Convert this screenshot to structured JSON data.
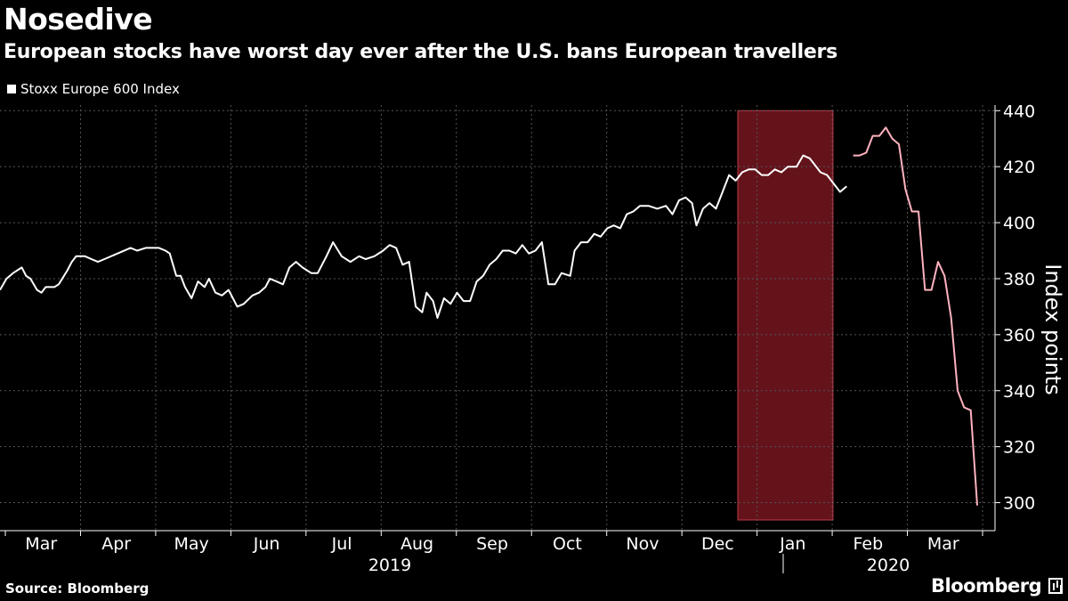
{
  "header": {
    "title": "Nosedive",
    "subtitle": "European stocks have worst day ever after the U.S. bans European travellers"
  },
  "legend": {
    "label": "Stoxx Europe 600 Index"
  },
  "footer": {
    "source": "Source: Bloomberg",
    "brand": "Bloomberg"
  },
  "colors": {
    "background": "#000000",
    "line": "#ffffff",
    "highlight": "#8b1a26",
    "highlight_line": "#ffb3bf"
  },
  "chart_data": {
    "type": "line",
    "ylabel": "Index points",
    "ylim": [
      290,
      442
    ],
    "y_ticks": [
      300,
      320,
      340,
      360,
      380,
      400,
      420,
      440
    ],
    "grid": true,
    "x_month_labels": [
      "Mar",
      "Apr",
      "May",
      "Jun",
      "Jul",
      "Aug",
      "Sep",
      "Oct",
      "Nov",
      "Dec",
      "Jan",
      "Feb",
      "Mar"
    ],
    "x_year_labels": [
      "2019",
      "2020"
    ],
    "highlight_range": [
      "2020-02-03",
      "2020-03-12"
    ],
    "series": [
      {
        "name": "Stoxx Europe 600 Index",
        "points": [
          [
            "2019-03-01",
            376
          ],
          [
            "2019-03-04",
            380
          ],
          [
            "2019-03-07",
            382
          ],
          [
            "2019-03-11",
            384
          ],
          [
            "2019-03-13",
            381
          ],
          [
            "2019-03-15",
            380
          ],
          [
            "2019-03-18",
            376
          ],
          [
            "2019-03-20",
            375
          ],
          [
            "2019-03-22",
            377
          ],
          [
            "2019-03-26",
            377
          ],
          [
            "2019-03-28",
            378
          ],
          [
            "2019-04-01",
            383
          ],
          [
            "2019-04-03",
            386
          ],
          [
            "2019-04-05",
            388
          ],
          [
            "2019-04-09",
            388
          ],
          [
            "2019-04-12",
            387
          ],
          [
            "2019-04-15",
            386
          ],
          [
            "2019-04-18",
            387
          ],
          [
            "2019-04-24",
            389
          ],
          [
            "2019-04-30",
            391
          ],
          [
            "2019-05-03",
            390
          ],
          [
            "2019-05-07",
            391
          ],
          [
            "2019-05-13",
            391
          ],
          [
            "2019-05-16",
            390
          ],
          [
            "2019-05-18",
            389
          ],
          [
            "2019-05-21",
            381
          ],
          [
            "2019-05-23",
            381
          ],
          [
            "2019-05-25",
            377
          ],
          [
            "2019-05-28",
            373
          ],
          [
            "2019-05-31",
            379
          ],
          [
            "2019-06-03",
            377
          ],
          [
            "2019-06-05",
            380
          ],
          [
            "2019-06-08",
            375
          ],
          [
            "2019-06-11",
            374
          ],
          [
            "2019-06-14",
            376
          ],
          [
            "2019-06-18",
            370
          ],
          [
            "2019-06-21",
            371
          ],
          [
            "2019-06-25",
            374
          ],
          [
            "2019-06-28",
            375
          ],
          [
            "2019-07-01",
            377
          ],
          [
            "2019-07-03",
            380
          ],
          [
            "2019-07-06",
            379
          ],
          [
            "2019-07-09",
            378
          ],
          [
            "2019-07-12",
            384
          ],
          [
            "2019-07-15",
            386
          ],
          [
            "2019-07-18",
            384
          ],
          [
            "2019-07-22",
            382
          ],
          [
            "2019-07-25",
            382
          ],
          [
            "2019-07-29",
            388
          ],
          [
            "2019-08-01",
            393
          ],
          [
            "2019-08-05",
            388
          ],
          [
            "2019-08-09",
            386
          ],
          [
            "2019-08-13",
            388
          ],
          [
            "2019-08-16",
            387
          ],
          [
            "2019-08-20",
            388
          ],
          [
            "2019-08-24",
            390
          ],
          [
            "2019-08-27",
            392
          ],
          [
            "2019-08-30",
            391
          ],
          [
            "2019-09-02",
            385
          ],
          [
            "2019-09-05",
            386
          ],
          [
            "2019-09-08",
            370
          ],
          [
            "2019-09-11",
            368
          ],
          [
            "2019-09-13",
            375
          ],
          [
            "2019-09-16",
            372
          ],
          [
            "2019-09-18",
            366
          ],
          [
            "2019-09-21",
            373
          ],
          [
            "2019-09-24",
            371
          ],
          [
            "2019-09-27",
            375
          ],
          [
            "2019-09-30",
            372
          ],
          [
            "2019-10-03",
            372
          ],
          [
            "2019-10-06",
            379
          ],
          [
            "2019-10-09",
            381
          ],
          [
            "2019-10-12",
            385
          ],
          [
            "2019-10-15",
            387
          ],
          [
            "2019-10-18",
            390
          ],
          [
            "2019-10-21",
            390
          ],
          [
            "2019-10-24",
            389
          ],
          [
            "2019-10-27",
            392
          ],
          [
            "2019-10-30",
            389
          ],
          [
            "2019-11-02",
            390
          ],
          [
            "2019-11-05",
            393
          ],
          [
            "2019-11-08",
            378
          ],
          [
            "2019-11-11",
            378
          ],
          [
            "2019-11-14",
            382
          ],
          [
            "2019-11-18",
            381
          ],
          [
            "2019-11-20",
            390
          ],
          [
            "2019-11-23",
            393
          ],
          [
            "2019-11-26",
            393
          ],
          [
            "2019-11-29",
            396
          ],
          [
            "2019-12-02",
            395
          ],
          [
            "2019-12-05",
            398
          ],
          [
            "2019-12-08",
            399
          ],
          [
            "2019-12-11",
            398
          ],
          [
            "2019-12-14",
            403
          ],
          [
            "2019-12-17",
            404
          ],
          [
            "2019-12-20",
            406
          ],
          [
            "2019-12-24",
            406
          ],
          [
            "2019-12-28",
            405
          ],
          [
            "2020-01-01",
            406
          ],
          [
            "2020-01-04",
            403
          ],
          [
            "2020-01-07",
            408
          ],
          [
            "2020-01-10",
            409
          ],
          [
            "2020-01-13",
            407
          ],
          [
            "2020-01-15",
            399
          ],
          [
            "2020-01-18",
            405
          ],
          [
            "2020-01-21",
            407
          ],
          [
            "2020-01-24",
            405
          ],
          [
            "2020-01-27",
            411
          ],
          [
            "2020-01-30",
            417
          ],
          [
            "2020-02-02",
            415
          ],
          [
            "2020-02-05",
            418
          ],
          [
            "2020-02-08",
            419
          ],
          [
            "2020-02-11",
            419
          ],
          [
            "2020-02-14",
            417
          ],
          [
            "2020-02-17",
            417
          ],
          [
            "2020-02-20",
            419
          ],
          [
            "2020-02-23",
            418
          ],
          [
            "2020-02-26",
            420
          ],
          [
            "2020-03-01",
            420
          ],
          [
            "2020-03-04",
            424
          ],
          [
            "2020-03-07",
            423
          ],
          [
            "2020-03-09",
            421
          ],
          [
            "2020-03-12",
            418
          ],
          [
            "2020-03-15",
            417
          ],
          [
            "2020-03-18",
            414
          ],
          [
            "2020-03-21",
            411
          ],
          [
            "2020-03-24",
            413
          ],
          [
            "2020-03-27",
            424
          ],
          [
            "2020-03-30",
            424
          ],
          [
            "2020-04-02",
            425
          ],
          [
            "2020-04-05",
            431
          ],
          [
            "2020-04-08",
            431
          ],
          [
            "2020-04-11",
            434
          ],
          [
            "2020-04-14",
            430
          ],
          [
            "2020-04-17",
            428
          ],
          [
            "2020-04-20",
            412
          ],
          [
            "2020-04-23",
            404
          ],
          [
            "2020-04-26",
            404
          ],
          [
            "2020-04-29",
            376
          ],
          [
            "2020-05-02",
            376
          ],
          [
            "2020-05-05",
            386
          ],
          [
            "2020-05-08",
            381
          ],
          [
            "2020-05-11",
            366
          ],
          [
            "2020-05-14",
            340
          ],
          [
            "2020-05-17",
            334
          ],
          [
            "2020-05-20",
            333
          ],
          [
            "2020-05-23",
            299
          ]
        ]
      }
    ]
  }
}
